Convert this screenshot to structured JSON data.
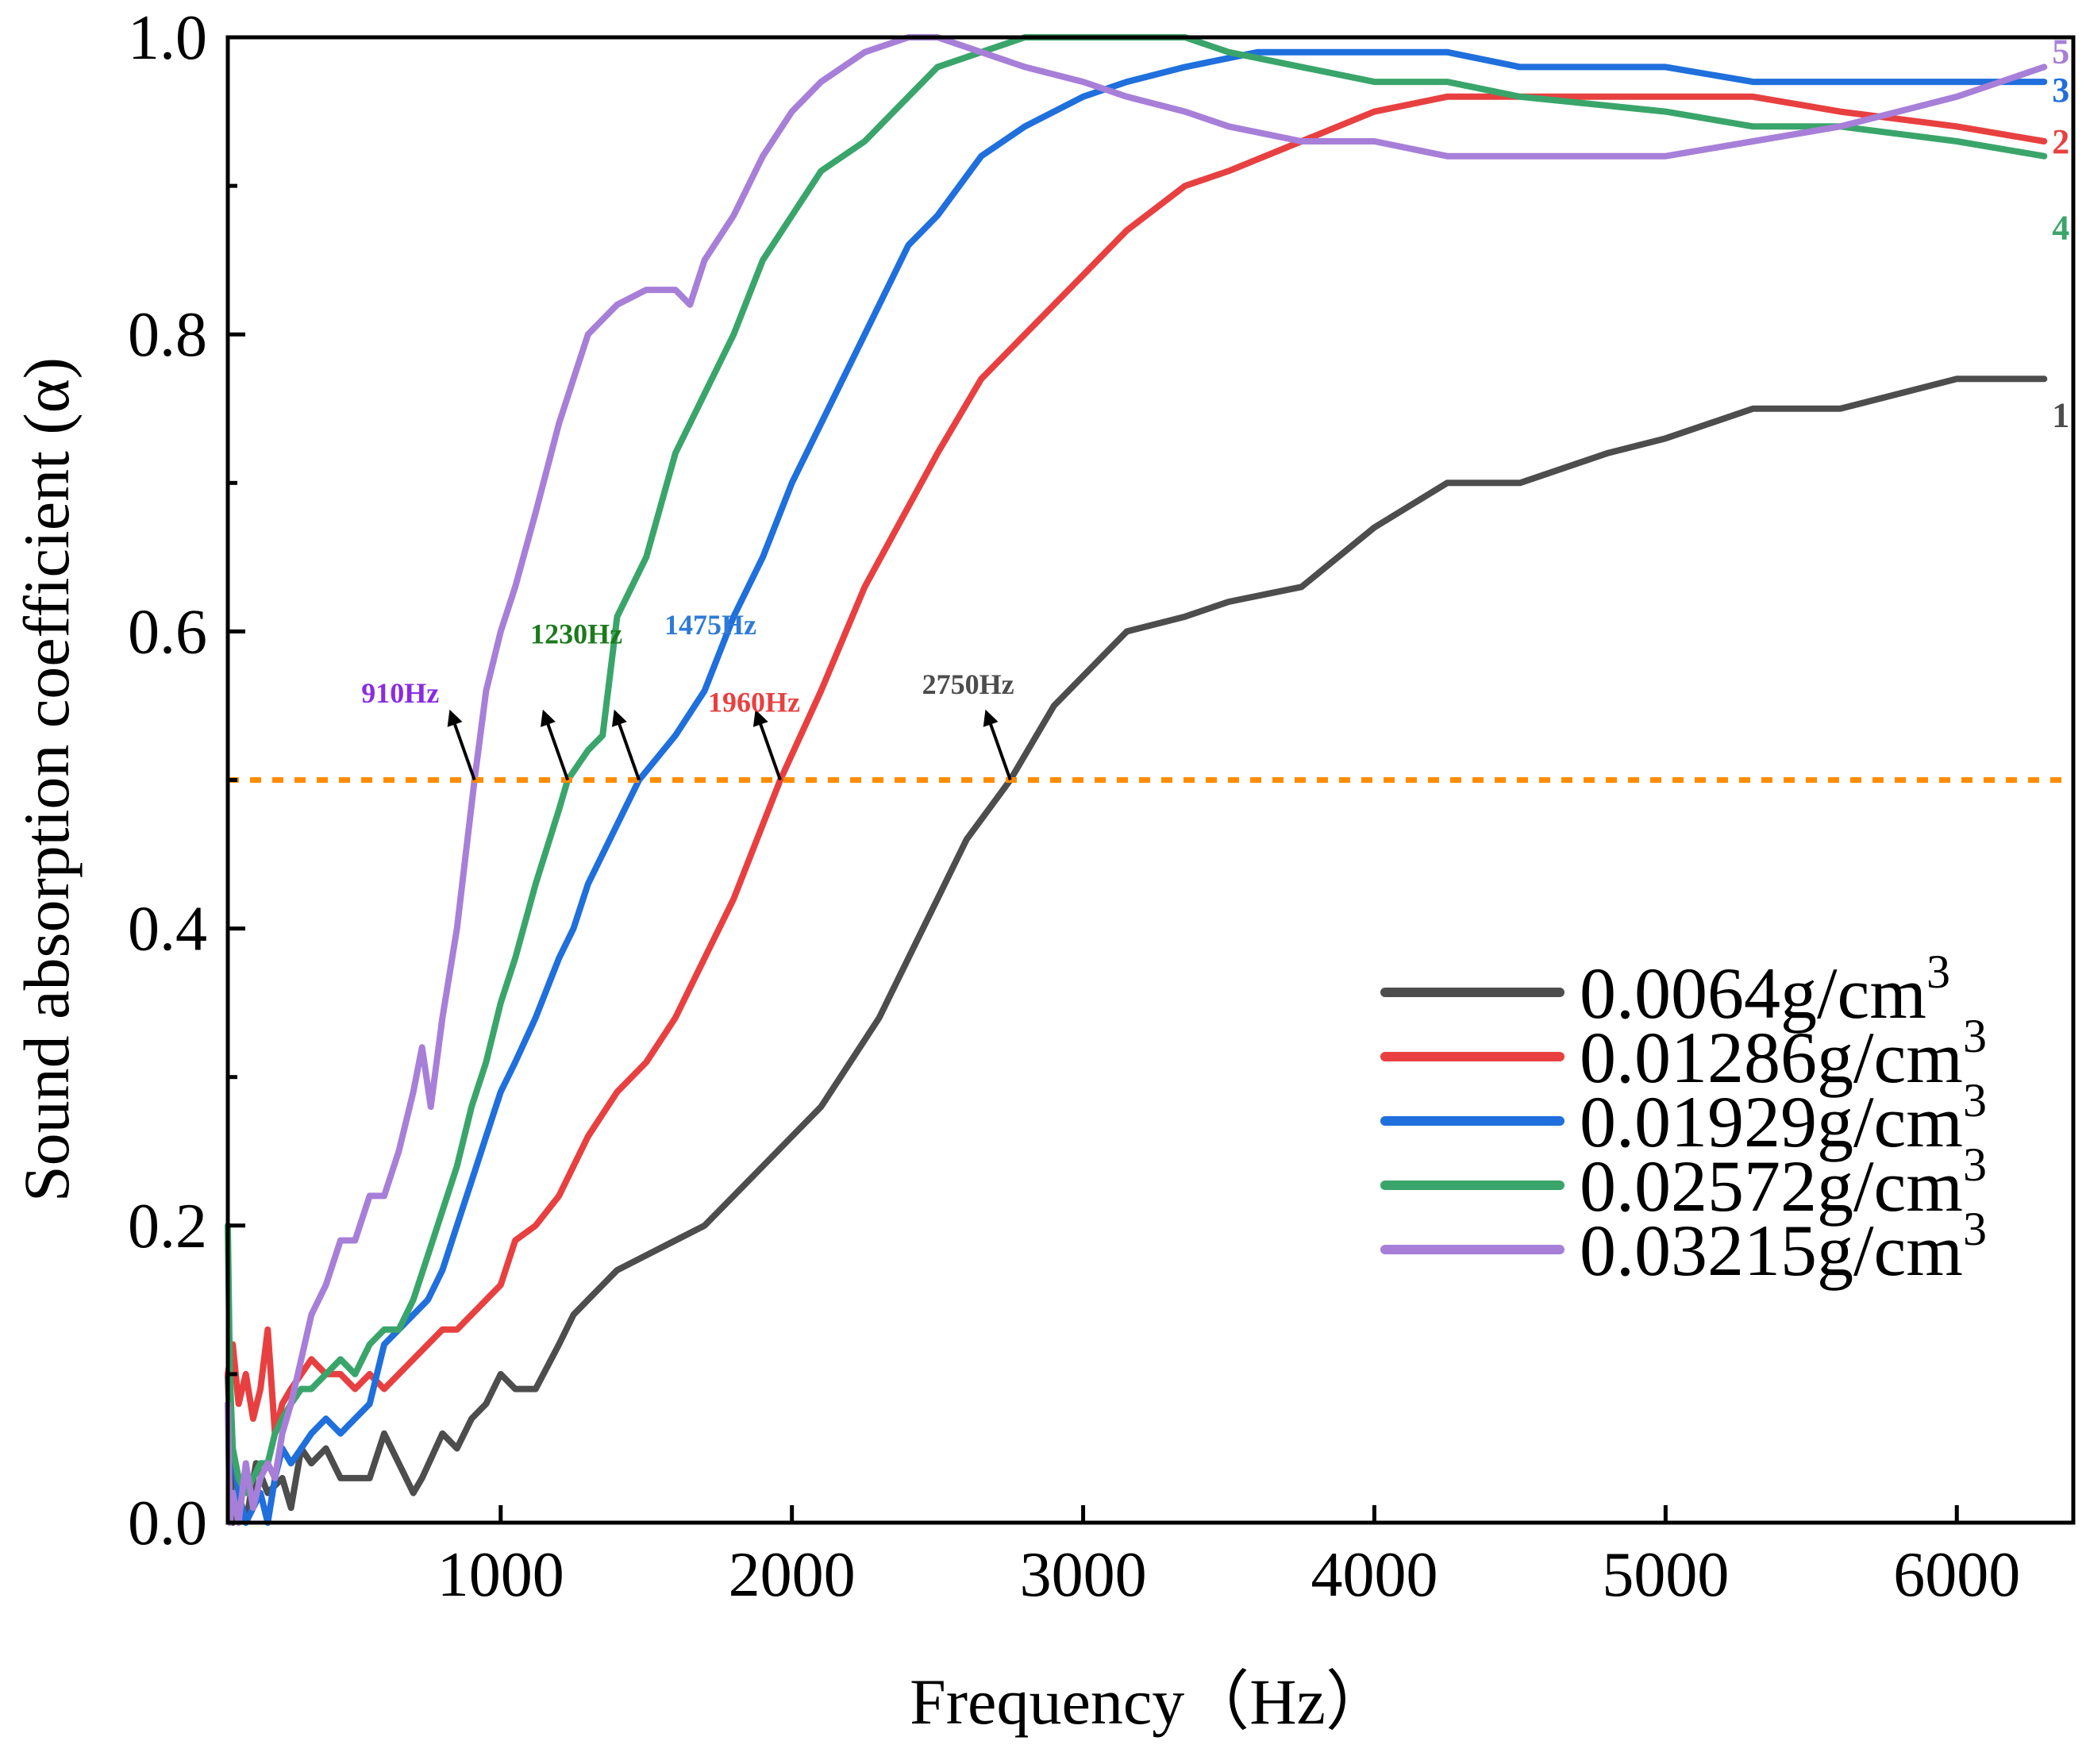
{
  "chart_data": {
    "type": "line",
    "xlabel": "Frequency（Hz）",
    "ylabel": "Sound absorption coefficient (α)",
    "xlim": [
      63,
      6400
    ],
    "ylim": [
      0.0,
      1.0
    ],
    "x_ticks": [
      1000,
      2000,
      3000,
      4000,
      5000,
      6000
    ],
    "y_ticks": [
      0.0,
      0.2,
      0.4,
      0.6,
      0.8,
      1.0
    ],
    "x_tick_labels": [
      "1000",
      "2000",
      "3000",
      "4000",
      "5000",
      "6000"
    ],
    "y_tick_labels": [
      "0.0",
      "0.2",
      "0.4",
      "0.6",
      "0.8",
      "1.0"
    ],
    "grid": false,
    "legend_position": "bottom-right",
    "reference_line": {
      "y": 0.5,
      "color": "#ff8c00",
      "style": "dashed"
    },
    "series": [
      {
        "name": "0.0064g/cm",
        "name_sup": "3",
        "end_label": "1",
        "color": "#4d4d4d",
        "points": [
          [
            63,
            0.1
          ],
          [
            80,
            0.0
          ],
          [
            100,
            0.02
          ],
          [
            125,
            0.0
          ],
          [
            160,
            0.04
          ],
          [
            200,
            0.02
          ],
          [
            250,
            0.03
          ],
          [
            280,
            0.01
          ],
          [
            315,
            0.05
          ],
          [
            350,
            0.04
          ],
          [
            400,
            0.05
          ],
          [
            450,
            0.03
          ],
          [
            500,
            0.03
          ],
          [
            550,
            0.03
          ],
          [
            600,
            0.06
          ],
          [
            650,
            0.04
          ],
          [
            700,
            0.02
          ],
          [
            730,
            0.03
          ],
          [
            800,
            0.06
          ],
          [
            850,
            0.05
          ],
          [
            900,
            0.07
          ],
          [
            950,
            0.08
          ],
          [
            1000,
            0.1
          ],
          [
            1050,
            0.09
          ],
          [
            1120,
            0.09
          ],
          [
            1200,
            0.12
          ],
          [
            1250,
            0.14
          ],
          [
            1300,
            0.15
          ],
          [
            1400,
            0.17
          ],
          [
            1500,
            0.18
          ],
          [
            1600,
            0.19
          ],
          [
            1700,
            0.2
          ],
          [
            1800,
            0.22
          ],
          [
            1900,
            0.24
          ],
          [
            2000,
            0.26
          ],
          [
            2100,
            0.28
          ],
          [
            2200,
            0.31
          ],
          [
            2300,
            0.34
          ],
          [
            2400,
            0.38
          ],
          [
            2500,
            0.42
          ],
          [
            2600,
            0.46
          ],
          [
            2750,
            0.5
          ],
          [
            2900,
            0.55
          ],
          [
            3000,
            0.57
          ],
          [
            3150,
            0.6
          ],
          [
            3350,
            0.61
          ],
          [
            3500,
            0.62
          ],
          [
            3750,
            0.63
          ],
          [
            4000,
            0.67
          ],
          [
            4250,
            0.7
          ],
          [
            4500,
            0.7
          ],
          [
            4800,
            0.72
          ],
          [
            5000,
            0.73
          ],
          [
            5300,
            0.75
          ],
          [
            5600,
            0.75
          ],
          [
            6000,
            0.77
          ],
          [
            6300,
            0.77
          ]
        ]
      },
      {
        "name": "0.01286g/cm",
        "name_sup": "3",
        "end_label": "2",
        "color": "#e84040",
        "points": [
          [
            63,
            0.1
          ],
          [
            80,
            0.12
          ],
          [
            100,
            0.08
          ],
          [
            125,
            0.1
          ],
          [
            150,
            0.07
          ],
          [
            175,
            0.09
          ],
          [
            200,
            0.13
          ],
          [
            225,
            0.06
          ],
          [
            250,
            0.08
          ],
          [
            280,
            0.09
          ],
          [
            315,
            0.1
          ],
          [
            350,
            0.11
          ],
          [
            400,
            0.1
          ],
          [
            450,
            0.1
          ],
          [
            500,
            0.09
          ],
          [
            550,
            0.1
          ],
          [
            600,
            0.09
          ],
          [
            650,
            0.1
          ],
          [
            700,
            0.11
          ],
          [
            800,
            0.13
          ],
          [
            850,
            0.13
          ],
          [
            900,
            0.14
          ],
          [
            950,
            0.15
          ],
          [
            1000,
            0.16
          ],
          [
            1050,
            0.19
          ],
          [
            1120,
            0.2
          ],
          [
            1200,
            0.22
          ],
          [
            1300,
            0.26
          ],
          [
            1400,
            0.29
          ],
          [
            1500,
            0.31
          ],
          [
            1600,
            0.34
          ],
          [
            1700,
            0.38
          ],
          [
            1800,
            0.42
          ],
          [
            1960,
            0.5
          ],
          [
            2100,
            0.56
          ],
          [
            2250,
            0.63
          ],
          [
            2500,
            0.72
          ],
          [
            2650,
            0.77
          ],
          [
            2800,
            0.8
          ],
          [
            3000,
            0.84
          ],
          [
            3150,
            0.87
          ],
          [
            3350,
            0.9
          ],
          [
            3500,
            0.91
          ],
          [
            3750,
            0.93
          ],
          [
            4000,
            0.95
          ],
          [
            4250,
            0.96
          ],
          [
            4500,
            0.96
          ],
          [
            5000,
            0.96
          ],
          [
            5300,
            0.96
          ],
          [
            5600,
            0.95
          ],
          [
            6000,
            0.94
          ],
          [
            6300,
            0.93
          ]
        ]
      },
      {
        "name": "0.01929g/cm",
        "name_sup": "3",
        "end_label": "3",
        "color": "#1f6fdc",
        "points": [
          [
            63,
            0.08
          ],
          [
            80,
            0.05
          ],
          [
            100,
            0.02
          ],
          [
            125,
            0.0
          ],
          [
            150,
            0.01
          ],
          [
            175,
            0.02
          ],
          [
            200,
            0.0
          ],
          [
            225,
            0.03
          ],
          [
            250,
            0.05
          ],
          [
            280,
            0.04
          ],
          [
            315,
            0.05
          ],
          [
            350,
            0.06
          ],
          [
            400,
            0.07
          ],
          [
            450,
            0.06
          ],
          [
            500,
            0.07
          ],
          [
            550,
            0.08
          ],
          [
            600,
            0.12
          ],
          [
            650,
            0.13
          ],
          [
            700,
            0.14
          ],
          [
            750,
            0.15
          ],
          [
            800,
            0.17
          ],
          [
            850,
            0.2
          ],
          [
            900,
            0.23
          ],
          [
            950,
            0.26
          ],
          [
            1000,
            0.29
          ],
          [
            1050,
            0.31
          ],
          [
            1120,
            0.34
          ],
          [
            1200,
            0.38
          ],
          [
            1250,
            0.4
          ],
          [
            1300,
            0.43
          ],
          [
            1400,
            0.47
          ],
          [
            1475,
            0.5
          ],
          [
            1600,
            0.53
          ],
          [
            1700,
            0.56
          ],
          [
            1800,
            0.61
          ],
          [
            1900,
            0.65
          ],
          [
            2000,
            0.7
          ],
          [
            2100,
            0.74
          ],
          [
            2250,
            0.8
          ],
          [
            2400,
            0.86
          ],
          [
            2500,
            0.88
          ],
          [
            2650,
            0.92
          ],
          [
            2800,
            0.94
          ],
          [
            3000,
            0.96
          ],
          [
            3150,
            0.97
          ],
          [
            3350,
            0.98
          ],
          [
            3600,
            0.99
          ],
          [
            4000,
            0.99
          ],
          [
            4250,
            0.99
          ],
          [
            4500,
            0.98
          ],
          [
            5000,
            0.98
          ],
          [
            5300,
            0.97
          ],
          [
            5600,
            0.97
          ],
          [
            6000,
            0.97
          ],
          [
            6300,
            0.97
          ]
        ]
      },
      {
        "name": "0.02572g/cm",
        "name_sup": "3",
        "end_label": "4",
        "color": "#3aa56a",
        "points": [
          [
            63,
            0.2
          ],
          [
            70,
            0.1
          ],
          [
            80,
            0.05
          ],
          [
            100,
            0.03
          ],
          [
            125,
            0.02
          ],
          [
            150,
            0.03
          ],
          [
            175,
            0.04
          ],
          [
            200,
            0.04
          ],
          [
            225,
            0.06
          ],
          [
            250,
            0.07
          ],
          [
            280,
            0.08
          ],
          [
            315,
            0.09
          ],
          [
            350,
            0.09
          ],
          [
            400,
            0.1
          ],
          [
            450,
            0.11
          ],
          [
            500,
            0.1
          ],
          [
            550,
            0.12
          ],
          [
            600,
            0.13
          ],
          [
            650,
            0.13
          ],
          [
            700,
            0.15
          ],
          [
            750,
            0.18
          ],
          [
            800,
            0.21
          ],
          [
            850,
            0.24
          ],
          [
            900,
            0.28
          ],
          [
            950,
            0.31
          ],
          [
            1000,
            0.35
          ],
          [
            1050,
            0.38
          ],
          [
            1120,
            0.43
          ],
          [
            1200,
            0.48
          ],
          [
            1230,
            0.5
          ],
          [
            1300,
            0.52
          ],
          [
            1350,
            0.53
          ],
          [
            1400,
            0.61
          ],
          [
            1500,
            0.65
          ],
          [
            1600,
            0.72
          ],
          [
            1700,
            0.76
          ],
          [
            1800,
            0.8
          ],
          [
            1900,
            0.85
          ],
          [
            2000,
            0.88
          ],
          [
            2100,
            0.91
          ],
          [
            2250,
            0.93
          ],
          [
            2400,
            0.96
          ],
          [
            2500,
            0.98
          ],
          [
            2650,
            0.99
          ],
          [
            2800,
            1.0
          ],
          [
            3000,
            1.0
          ],
          [
            3150,
            1.0
          ],
          [
            3350,
            1.0
          ],
          [
            3500,
            0.99
          ],
          [
            3750,
            0.98
          ],
          [
            4000,
            0.97
          ],
          [
            4250,
            0.97
          ],
          [
            4500,
            0.96
          ],
          [
            5000,
            0.95
          ],
          [
            5300,
            0.94
          ],
          [
            5600,
            0.94
          ],
          [
            6000,
            0.93
          ],
          [
            6300,
            0.92
          ]
        ]
      },
      {
        "name": "0.03215g/cm",
        "name_sup": "3",
        "end_label": "5",
        "color": "#a77fd8",
        "points": [
          [
            63,
            0.08
          ],
          [
            70,
            0.0
          ],
          [
            80,
            0.02
          ],
          [
            100,
            0.0
          ],
          [
            125,
            0.04
          ],
          [
            150,
            0.01
          ],
          [
            175,
            0.03
          ],
          [
            200,
            0.04
          ],
          [
            225,
            0.03
          ],
          [
            250,
            0.06
          ],
          [
            280,
            0.08
          ],
          [
            315,
            0.11
          ],
          [
            350,
            0.14
          ],
          [
            400,
            0.16
          ],
          [
            450,
            0.19
          ],
          [
            500,
            0.19
          ],
          [
            550,
            0.22
          ],
          [
            600,
            0.22
          ],
          [
            650,
            0.25
          ],
          [
            700,
            0.29
          ],
          [
            730,
            0.32
          ],
          [
            760,
            0.28
          ],
          [
            800,
            0.34
          ],
          [
            850,
            0.4
          ],
          [
            910,
            0.5
          ],
          [
            950,
            0.56
          ],
          [
            1000,
            0.6
          ],
          [
            1050,
            0.63
          ],
          [
            1120,
            0.68
          ],
          [
            1200,
            0.74
          ],
          [
            1250,
            0.77
          ],
          [
            1300,
            0.8
          ],
          [
            1400,
            0.82
          ],
          [
            1500,
            0.83
          ],
          [
            1600,
            0.83
          ],
          [
            1650,
            0.82
          ],
          [
            1700,
            0.85
          ],
          [
            1800,
            0.88
          ],
          [
            1900,
            0.92
          ],
          [
            2000,
            0.95
          ],
          [
            2100,
            0.97
          ],
          [
            2250,
            0.99
          ],
          [
            2400,
            1.0
          ],
          [
            2500,
            1.0
          ],
          [
            2650,
            0.99
          ],
          [
            2800,
            0.98
          ],
          [
            3000,
            0.97
          ],
          [
            3150,
            0.96
          ],
          [
            3350,
            0.95
          ],
          [
            3500,
            0.94
          ],
          [
            3750,
            0.93
          ],
          [
            4000,
            0.93
          ],
          [
            4250,
            0.92
          ],
          [
            4500,
            0.92
          ],
          [
            5000,
            0.92
          ],
          [
            5300,
            0.93
          ],
          [
            5600,
            0.94
          ],
          [
            6000,
            0.96
          ],
          [
            6300,
            0.98
          ]
        ]
      }
    ],
    "annotations": [
      {
        "text": "910Hz",
        "color": "#8a2be2",
        "x": 910,
        "y": 0.5,
        "label_x": 655,
        "label_y": 0.552
      },
      {
        "text": "1230Hz",
        "color": "#1c7a1c",
        "x": 1230,
        "y": 0.5,
        "label_x": 1260,
        "label_y": 0.592
      },
      {
        "text": "1475Hz",
        "color": "#2e7ad8",
        "x": 1475,
        "y": 0.5,
        "label_x": 1720,
        "label_y": 0.598
      },
      {
        "text": "1960Hz",
        "color": "#e84040",
        "x": 1960,
        "y": 0.5,
        "label_x": 1870,
        "label_y": 0.546
      },
      {
        "text": "2750Hz",
        "color": "#4d4d4d",
        "x": 2750,
        "y": 0.5,
        "label_x": 2605,
        "label_y": 0.558
      }
    ]
  }
}
